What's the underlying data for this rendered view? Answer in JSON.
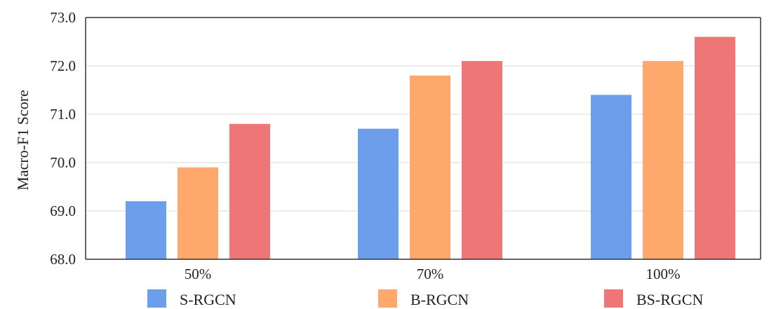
{
  "chart_data": {
    "type": "bar",
    "title": "",
    "xlabel": "",
    "ylabel": "Macro-F1 Score",
    "ylim": [
      68.0,
      73.0
    ],
    "yticks": [
      "68.0",
      "69.0",
      "70.0",
      "71.0",
      "72.0",
      "73.0"
    ],
    "categories": [
      "50%",
      "70%",
      "100%"
    ],
    "series": [
      {
        "name": "S-RGCN",
        "values": [
          69.2,
          70.7,
          71.4
        ],
        "color": "#6d9eeb"
      },
      {
        "name": "B-RGCN",
        "values": [
          69.9,
          71.8,
          72.1
        ],
        "color": "#ffa86b"
      },
      {
        "name": "BS-RGCN",
        "values": [
          70.8,
          72.1,
          72.6
        ],
        "color": "#ee7676"
      }
    ],
    "grid": true,
    "legend_position": "bottom"
  }
}
